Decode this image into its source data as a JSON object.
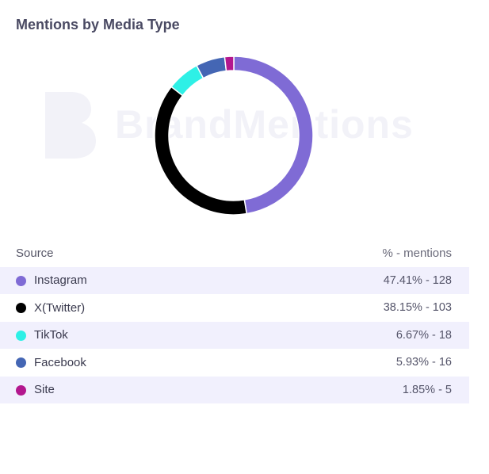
{
  "chart_data": {
    "type": "pie",
    "title": "Mentions by Media Type",
    "columns": {
      "source": "Source",
      "value": "% - mentions"
    },
    "slices": [
      {
        "name": "Instagram",
        "percent": 47.41,
        "count": 128,
        "display": "47.41% - 128",
        "color": "#7f6bd5"
      },
      {
        "name": "X(Twitter)",
        "percent": 38.15,
        "count": 103,
        "display": "38.15% - 103",
        "color": "#000000"
      },
      {
        "name": "TikTok",
        "percent": 6.67,
        "count": 18,
        "display": "6.67% - 18",
        "color": "#2ef0e6"
      },
      {
        "name": "Facebook",
        "percent": 5.93,
        "count": 16,
        "display": "5.93% - 16",
        "color": "#4466b4"
      },
      {
        "name": "Site",
        "percent": 1.85,
        "count": 5,
        "display": "1.85% - 5",
        "color": "#b3178e"
      }
    ]
  },
  "watermark": {
    "text": "BrandMentions"
  }
}
